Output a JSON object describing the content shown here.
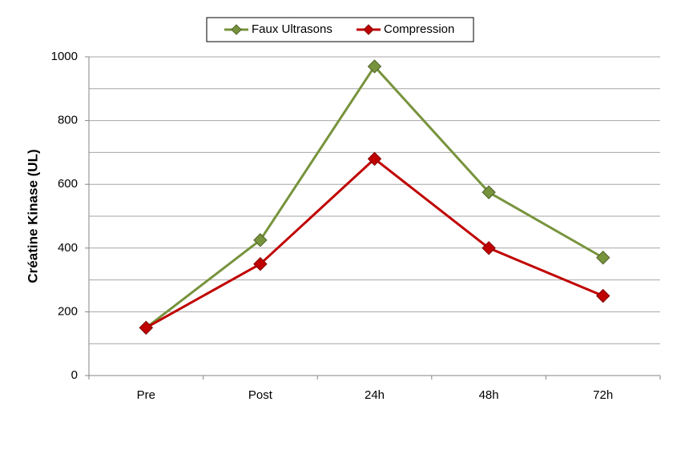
{
  "chart_data": {
    "type": "line",
    "y_label": "Créatine Kinase (UL)",
    "categories": [
      "Pre",
      "Post",
      "24h",
      "48h",
      "72h"
    ],
    "series": [
      {
        "name": "Faux Ultrasons",
        "color": "#77933c",
        "values": [
          150,
          425,
          970,
          575,
          370
        ]
      },
      {
        "name": "Compression",
        "color": "#c00000",
        "values": [
          150,
          350,
          680,
          400,
          250
        ]
      }
    ],
    "ylim": [
      0,
      1000
    ],
    "yticks": [
      0,
      200,
      400,
      600,
      800,
      1000
    ],
    "minor_yticks": [
      100,
      300,
      500,
      700,
      900
    ],
    "grid": true,
    "legend": "top"
  }
}
